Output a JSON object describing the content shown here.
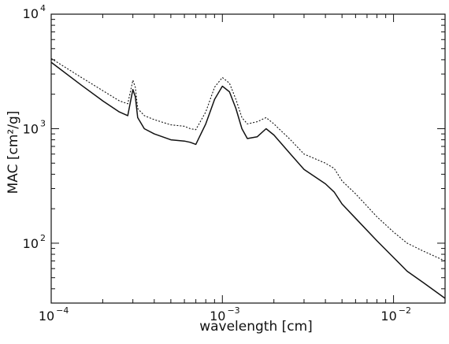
{
  "chart_data": {
    "type": "line",
    "title": "",
    "xlabel": "wavelength [cm]",
    "ylabel": "MAC [cm²/g]",
    "xscale": "log",
    "yscale": "log",
    "xlim": [
      0.0001,
      0.02
    ],
    "ylim": [
      30,
      10000
    ],
    "grid": false,
    "legend": "none",
    "x_ticks": [
      {
        "value": 0.0001,
        "base": "10",
        "exp": "−4"
      },
      {
        "value": 0.001,
        "base": "10",
        "exp": "−3"
      },
      {
        "value": 0.01,
        "base": "10",
        "exp": "−2"
      }
    ],
    "y_ticks": [
      {
        "value": 100,
        "base": "10",
        "exp": "2"
      },
      {
        "value": 1000,
        "base": "10",
        "exp": "3"
      },
      {
        "value": 10000,
        "base": "10",
        "exp": "4"
      }
    ],
    "series": [
      {
        "style": "solid",
        "x": [
          0.0001,
          0.00015,
          0.0002,
          0.00025,
          0.00028,
          0.00029,
          0.0003,
          0.00031,
          0.00032,
          0.00035,
          0.0004,
          0.0005,
          0.0006,
          0.00065,
          0.0007,
          0.0008,
          0.0009,
          0.001,
          0.0011,
          0.0012,
          0.0013,
          0.0014,
          0.0016,
          0.0018,
          0.002,
          0.0025,
          0.003,
          0.004,
          0.0045,
          0.005,
          0.006,
          0.008,
          0.01,
          0.012,
          0.015,
          0.02
        ],
        "y": [
          3800,
          2400,
          1750,
          1400,
          1300,
          1700,
          2200,
          1900,
          1250,
          1000,
          900,
          800,
          780,
          760,
          730,
          1100,
          1800,
          2350,
          2100,
          1500,
          1000,
          820,
          850,
          1000,
          880,
          600,
          440,
          330,
          280,
          220,
          165,
          105,
          75,
          57,
          45,
          33
        ]
      },
      {
        "style": "dashed",
        "x": [
          0.0001,
          0.00015,
          0.0002,
          0.00025,
          0.00028,
          0.00029,
          0.0003,
          0.00031,
          0.00032,
          0.00035,
          0.0004,
          0.0005,
          0.0006,
          0.00065,
          0.0007,
          0.0008,
          0.0009,
          0.001,
          0.0011,
          0.0012,
          0.0013,
          0.0014,
          0.0016,
          0.0018,
          0.002,
          0.0025,
          0.003,
          0.004,
          0.0045,
          0.005,
          0.006,
          0.008,
          0.01,
          0.012,
          0.015,
          0.02
        ],
        "y": [
          4100,
          2800,
          2150,
          1750,
          1650,
          2100,
          2650,
          2300,
          1500,
          1300,
          1200,
          1080,
          1050,
          1000,
          980,
          1400,
          2300,
          2800,
          2500,
          1800,
          1250,
          1100,
          1150,
          1250,
          1100,
          800,
          600,
          500,
          450,
          350,
          270,
          170,
          125,
          100,
          85,
          70
        ]
      }
    ]
  }
}
